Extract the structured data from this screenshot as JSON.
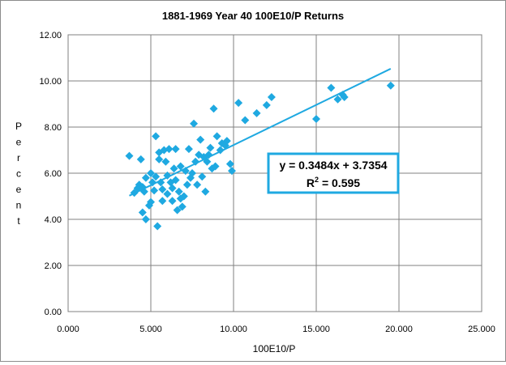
{
  "chart_data": {
    "type": "scatter",
    "title": "1881-1969 Year 40 100E10/P Returns",
    "xlabel": "100E10/P",
    "ylabel": "Percent",
    "xlim": [
      0,
      25
    ],
    "ylim": [
      0,
      12
    ],
    "x_ticks": [
      "0.000",
      "5.000",
      "10.000",
      "15.000",
      "20.000",
      "25.000"
    ],
    "y_ticks": [
      "0.00",
      "2.00",
      "4.00",
      "6.00",
      "8.00",
      "10.00",
      "12.00"
    ],
    "grid": true,
    "legend": "none",
    "marker_color": "#1fa9e1",
    "trendline": {
      "type": "linear",
      "slope": 0.3484,
      "intercept": 3.7354,
      "x_range": [
        3.7,
        19.5
      ],
      "equation_text": "y = 0.3484x + 3.7354",
      "r2_label": "R",
      "r2_sup": "2",
      "r2_value_text": " = 0.595"
    },
    "points": [
      [
        3.7,
        6.75
      ],
      [
        4.4,
        6.6
      ],
      [
        4.3,
        5.5
      ],
      [
        4.0,
        5.15
      ],
      [
        4.2,
        5.35
      ],
      [
        4.5,
        5.4
      ],
      [
        4.6,
        5.2
      ],
      [
        4.7,
        5.8
      ],
      [
        4.5,
        4.3
      ],
      [
        4.7,
        4.0
      ],
      [
        4.9,
        4.6
      ],
      [
        5.0,
        4.75
      ],
      [
        5.1,
        5.6
      ],
      [
        5.2,
        5.25
      ],
      [
        5.3,
        5.85
      ],
      [
        5.0,
        6.0
      ],
      [
        5.4,
        3.7
      ],
      [
        5.3,
        7.6
      ],
      [
        5.5,
        6.9
      ],
      [
        5.5,
        6.6
      ],
      [
        5.6,
        5.6
      ],
      [
        5.7,
        5.3
      ],
      [
        5.7,
        4.8
      ],
      [
        5.8,
        7.0
      ],
      [
        5.9,
        6.5
      ],
      [
        6.0,
        5.9
      ],
      [
        6.0,
        5.1
      ],
      [
        6.1,
        7.05
      ],
      [
        6.2,
        5.6
      ],
      [
        6.3,
        5.35
      ],
      [
        6.3,
        4.8
      ],
      [
        6.4,
        6.2
      ],
      [
        6.5,
        5.7
      ],
      [
        6.5,
        7.05
      ],
      [
        6.6,
        4.4
      ],
      [
        6.7,
        5.2
      ],
      [
        6.8,
        4.9
      ],
      [
        6.8,
        6.3
      ],
      [
        6.9,
        4.55
      ],
      [
        7.0,
        5.0
      ],
      [
        7.1,
        6.1
      ],
      [
        7.2,
        5.5
      ],
      [
        7.3,
        7.05
      ],
      [
        7.4,
        5.8
      ],
      [
        7.5,
        6.0
      ],
      [
        7.6,
        8.15
      ],
      [
        7.7,
        6.5
      ],
      [
        7.8,
        5.5
      ],
      [
        7.9,
        6.8
      ],
      [
        8.0,
        7.45
      ],
      [
        8.1,
        5.85
      ],
      [
        8.2,
        6.7
      ],
      [
        8.3,
        5.2
      ],
      [
        8.4,
        6.5
      ],
      [
        8.5,
        6.8
      ],
      [
        8.6,
        7.1
      ],
      [
        8.7,
        6.2
      ],
      [
        8.8,
        8.8
      ],
      [
        8.9,
        6.3
      ],
      [
        9.0,
        7.6
      ],
      [
        9.2,
        7.0
      ],
      [
        9.3,
        7.3
      ],
      [
        9.5,
        7.2
      ],
      [
        9.6,
        7.4
      ],
      [
        9.8,
        6.4
      ],
      [
        9.9,
        6.1
      ],
      [
        10.3,
        9.05
      ],
      [
        10.7,
        8.3
      ],
      [
        11.4,
        8.6
      ],
      [
        12.0,
        8.95
      ],
      [
        12.3,
        9.3
      ],
      [
        15.0,
        8.35
      ],
      [
        15.9,
        9.7
      ],
      [
        16.3,
        9.2
      ],
      [
        16.6,
        9.4
      ],
      [
        16.7,
        9.3
      ],
      [
        19.5,
        9.8
      ]
    ]
  }
}
